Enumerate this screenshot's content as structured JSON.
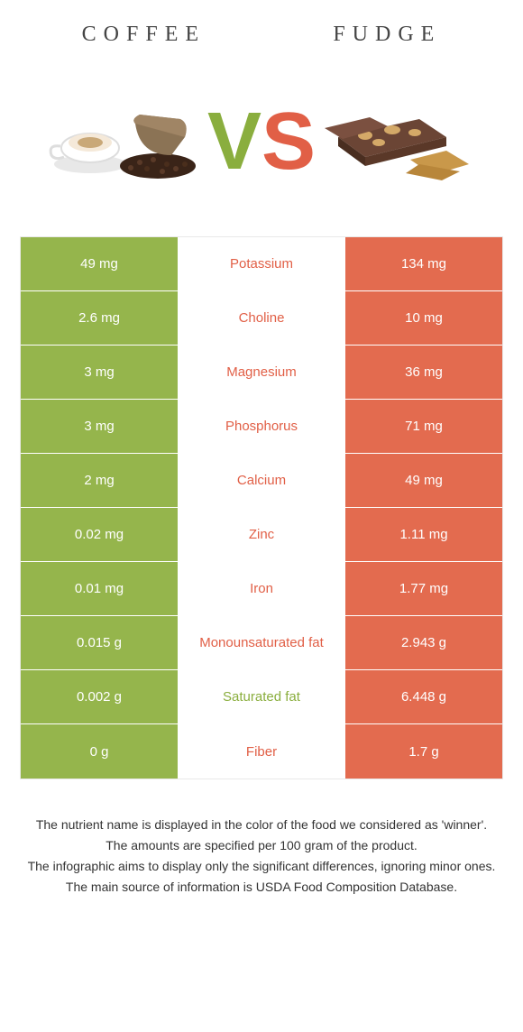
{
  "colors": {
    "left_bg": "#95b54c",
    "right_bg": "#e36b4f",
    "left_text": "#8aae3e",
    "right_text": "#e15f46"
  },
  "header": {
    "left": "Coffee",
    "right": "Fudge"
  },
  "rows": [
    {
      "left": "49 mg",
      "mid": "Potassium",
      "right": "134 mg",
      "winner": "right"
    },
    {
      "left": "2.6 mg",
      "mid": "Choline",
      "right": "10 mg",
      "winner": "right"
    },
    {
      "left": "3 mg",
      "mid": "Magnesium",
      "right": "36 mg",
      "winner": "right"
    },
    {
      "left": "3 mg",
      "mid": "Phosphorus",
      "right": "71 mg",
      "winner": "right"
    },
    {
      "left": "2 mg",
      "mid": "Calcium",
      "right": "49 mg",
      "winner": "right"
    },
    {
      "left": "0.02 mg",
      "mid": "Zinc",
      "right": "1.11 mg",
      "winner": "right"
    },
    {
      "left": "0.01 mg",
      "mid": "Iron",
      "right": "1.77 mg",
      "winner": "right"
    },
    {
      "left": "0.015 g",
      "mid": "Monounsaturated fat",
      "right": "2.943 g",
      "winner": "right"
    },
    {
      "left": "0.002 g",
      "mid": "Saturated fat",
      "right": "6.448 g",
      "winner": "left"
    },
    {
      "left": "0 g",
      "mid": "Fiber",
      "right": "1.7 g",
      "winner": "right"
    }
  ],
  "footer": [
    "The nutrient name is displayed in the color of the food we considered as 'winner'.",
    "The amounts are specified per 100 gram of the product.",
    "The infographic aims to display only the significant differences, ignoring minor ones.",
    "The main source of information is USDA Food Composition Database."
  ]
}
